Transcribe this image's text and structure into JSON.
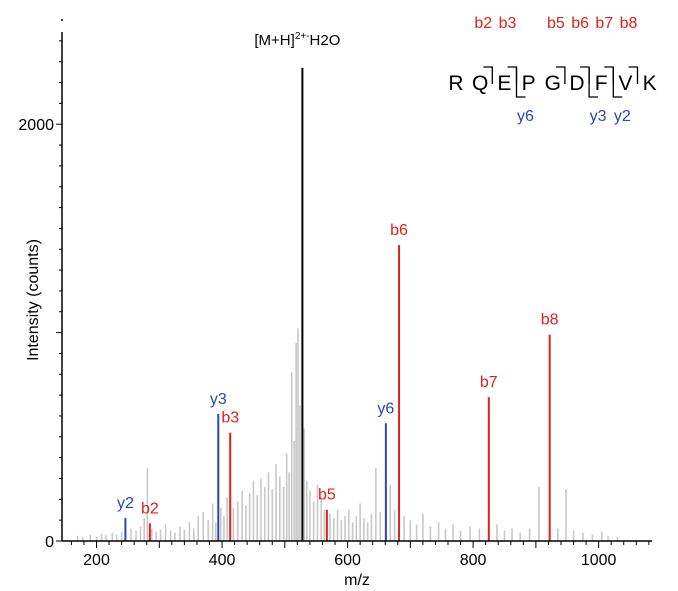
{
  "chart_data": {
    "type": "bar",
    "title": "",
    "xlabel": "m/z",
    "ylabel": "Intensity (counts)",
    "xlim": [
      145,
      1085
    ],
    "ylim": [
      0,
      2500
    ],
    "x_ticks": [
      200,
      400,
      600,
      800,
      1000
    ],
    "y_ticks": [
      0,
      2000
    ],
    "grid": false,
    "colors": {
      "b": "#e0201b",
      "y": "#2a49a8",
      "precursor": "#000000",
      "background": "#c8c8c8"
    },
    "peptide": {
      "residues": [
        "R",
        "Q",
        "E",
        "P",
        "G",
        "D",
        "F",
        "V",
        "K"
      ],
      "b_ions": [
        {
          "label": "b2",
          "after": 2
        },
        {
          "label": "b3",
          "after": 3
        },
        {
          "label": "b5",
          "after": 5
        },
        {
          "label": "b6",
          "after": 6
        },
        {
          "label": "b7",
          "after": 7
        },
        {
          "label": "b8",
          "after": 8
        }
      ],
      "y_ions": [
        {
          "label": "y6",
          "after": 3
        },
        {
          "label": "y3",
          "after": 6
        },
        {
          "label": "y2",
          "after": 7
        }
      ]
    },
    "annotated_peaks": [
      {
        "label": "y2",
        "ion": "y",
        "mz": 246,
        "intensity": 110
      },
      {
        "label": "b2",
        "ion": "b",
        "mz": 285,
        "intensity": 85
      },
      {
        "label": "y3",
        "ion": "y",
        "mz": 394,
        "intensity": 610
      },
      {
        "label": "b3",
        "ion": "b",
        "mz": 413,
        "intensity": 520
      },
      {
        "label": "b5",
        "ion": "b",
        "mz": 567,
        "intensity": 150
      },
      {
        "label": "y6",
        "ion": "y",
        "mz": 661,
        "intensity": 565
      },
      {
        "label": "b6",
        "ion": "b",
        "mz": 682,
        "intensity": 1420
      },
      {
        "label": "b7",
        "ion": "b",
        "mz": 825,
        "intensity": 690
      },
      {
        "label": "b8",
        "ion": "b",
        "mz": 922,
        "intensity": 990
      }
    ],
    "precursor_peak": {
      "label_prefix": "[M+H]",
      "label_superscript": "2+-",
      "label_suffix": "H2O",
      "mz": 528,
      "intensity": 2270
    },
    "background_peaks": [
      [
        170,
        25
      ],
      [
        178,
        20
      ],
      [
        190,
        30
      ],
      [
        200,
        22
      ],
      [
        208,
        35
      ],
      [
        215,
        28
      ],
      [
        225,
        40
      ],
      [
        232,
        30
      ],
      [
        240,
        45
      ],
      [
        255,
        60
      ],
      [
        263,
        50
      ],
      [
        270,
        70
      ],
      [
        276,
        110
      ],
      [
        281,
        350
      ],
      [
        288,
        60
      ],
      [
        295,
        45
      ],
      [
        302,
        55
      ],
      [
        310,
        80
      ],
      [
        318,
        50
      ],
      [
        325,
        40
      ],
      [
        333,
        70
      ],
      [
        340,
        55
      ],
      [
        348,
        90
      ],
      [
        355,
        60
      ],
      [
        362,
        120
      ],
      [
        370,
        140
      ],
      [
        378,
        100
      ],
      [
        385,
        180
      ],
      [
        390,
        90
      ],
      [
        398,
        160
      ],
      [
        403,
        120
      ],
      [
        408,
        210
      ],
      [
        418,
        160
      ],
      [
        425,
        190
      ],
      [
        432,
        240
      ],
      [
        438,
        170
      ],
      [
        444,
        230
      ],
      [
        450,
        290
      ],
      [
        456,
        220
      ],
      [
        462,
        300
      ],
      [
        468,
        260
      ],
      [
        474,
        330
      ],
      [
        480,
        250
      ],
      [
        486,
        370
      ],
      [
        492,
        310
      ],
      [
        498,
        260
      ],
      [
        503,
        420
      ],
      [
        507,
        330
      ],
      [
        511,
        810
      ],
      [
        515,
        480
      ],
      [
        518,
        950
      ],
      [
        521,
        1020
      ],
      [
        524,
        650
      ],
      [
        531,
        540
      ],
      [
        535,
        290
      ],
      [
        540,
        240
      ],
      [
        546,
        190
      ],
      [
        552,
        270
      ],
      [
        558,
        210
      ],
      [
        563,
        150
      ],
      [
        572,
        130
      ],
      [
        578,
        110
      ],
      [
        584,
        150
      ],
      [
        590,
        100
      ],
      [
        596,
        120
      ],
      [
        602,
        150
      ],
      [
        608,
        90
      ],
      [
        614,
        120
      ],
      [
        620,
        180
      ],
      [
        626,
        110
      ],
      [
        632,
        90
      ],
      [
        638,
        130
      ],
      [
        645,
        350
      ],
      [
        652,
        140
      ],
      [
        668,
        270
      ],
      [
        675,
        150
      ],
      [
        690,
        120
      ],
      [
        700,
        100
      ],
      [
        710,
        80
      ],
      [
        720,
        130
      ],
      [
        732,
        70
      ],
      [
        745,
        90
      ],
      [
        756,
        60
      ],
      [
        768,
        80
      ],
      [
        780,
        50
      ],
      [
        795,
        70
      ],
      [
        810,
        60
      ],
      [
        838,
        80
      ],
      [
        850,
        50
      ],
      [
        862,
        60
      ],
      [
        875,
        40
      ],
      [
        890,
        60
      ],
      [
        905,
        260
      ],
      [
        935,
        60
      ],
      [
        948,
        250
      ],
      [
        960,
        50
      ],
      [
        975,
        40
      ],
      [
        990,
        30
      ],
      [
        1005,
        45
      ],
      [
        1015,
        25
      ],
      [
        1030,
        20
      ]
    ]
  }
}
